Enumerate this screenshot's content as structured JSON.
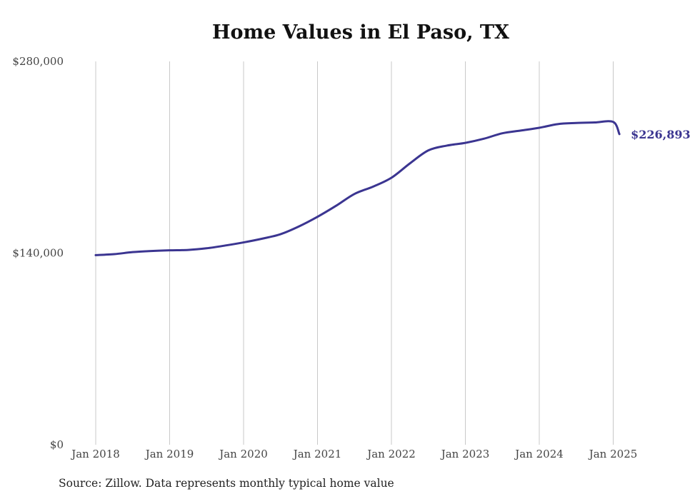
{
  "chart_data": {
    "type": "line",
    "title": "Home Values in El Paso, TX",
    "source": "Source: Zillow. Data represents monthly typical home value",
    "ylim": [
      0,
      280000
    ],
    "y_ticks": [
      0,
      140000,
      280000
    ],
    "y_tick_labels": [
      "$0",
      "$140,000",
      "$280,000"
    ],
    "x_tick_labels": [
      "Jan 2018",
      "Jan 2019",
      "Jan 2020",
      "Jan 2021",
      "Jan 2022",
      "Jan 2023",
      "Jan 2024",
      "Jan 2025"
    ],
    "x_range": [
      "2018-01",
      "2025-02"
    ],
    "grid": "vertical",
    "series": [
      {
        "color": "#3b3591",
        "end_label": "$226,893",
        "points": [
          [
            "2018-01",
            138500
          ],
          [
            "2018-04",
            139200
          ],
          [
            "2018-07",
            140700
          ],
          [
            "2018-10",
            141500
          ],
          [
            "2019-01",
            142000
          ],
          [
            "2019-04",
            142300
          ],
          [
            "2019-07",
            143500
          ],
          [
            "2019-10",
            145500
          ],
          [
            "2020-01",
            147800
          ],
          [
            "2020-04",
            150500
          ],
          [
            "2020-07",
            153800
          ],
          [
            "2020-10",
            159500
          ],
          [
            "2021-01",
            166500
          ],
          [
            "2021-04",
            174500
          ],
          [
            "2021-07",
            183200
          ],
          [
            "2021-10",
            188500
          ],
          [
            "2022-01",
            195000
          ],
          [
            "2022-04",
            205500
          ],
          [
            "2022-07",
            215000
          ],
          [
            "2022-10",
            218500
          ],
          [
            "2023-01",
            220500
          ],
          [
            "2023-04",
            223500
          ],
          [
            "2023-07",
            227500
          ],
          [
            "2023-10",
            229500
          ],
          [
            "2024-01",
            231500
          ],
          [
            "2024-04",
            234200
          ],
          [
            "2024-07",
            235000
          ],
          [
            "2024-10",
            235400
          ],
          [
            "2025-01",
            235800
          ],
          [
            "2025-02",
            226893
          ]
        ]
      }
    ]
  }
}
